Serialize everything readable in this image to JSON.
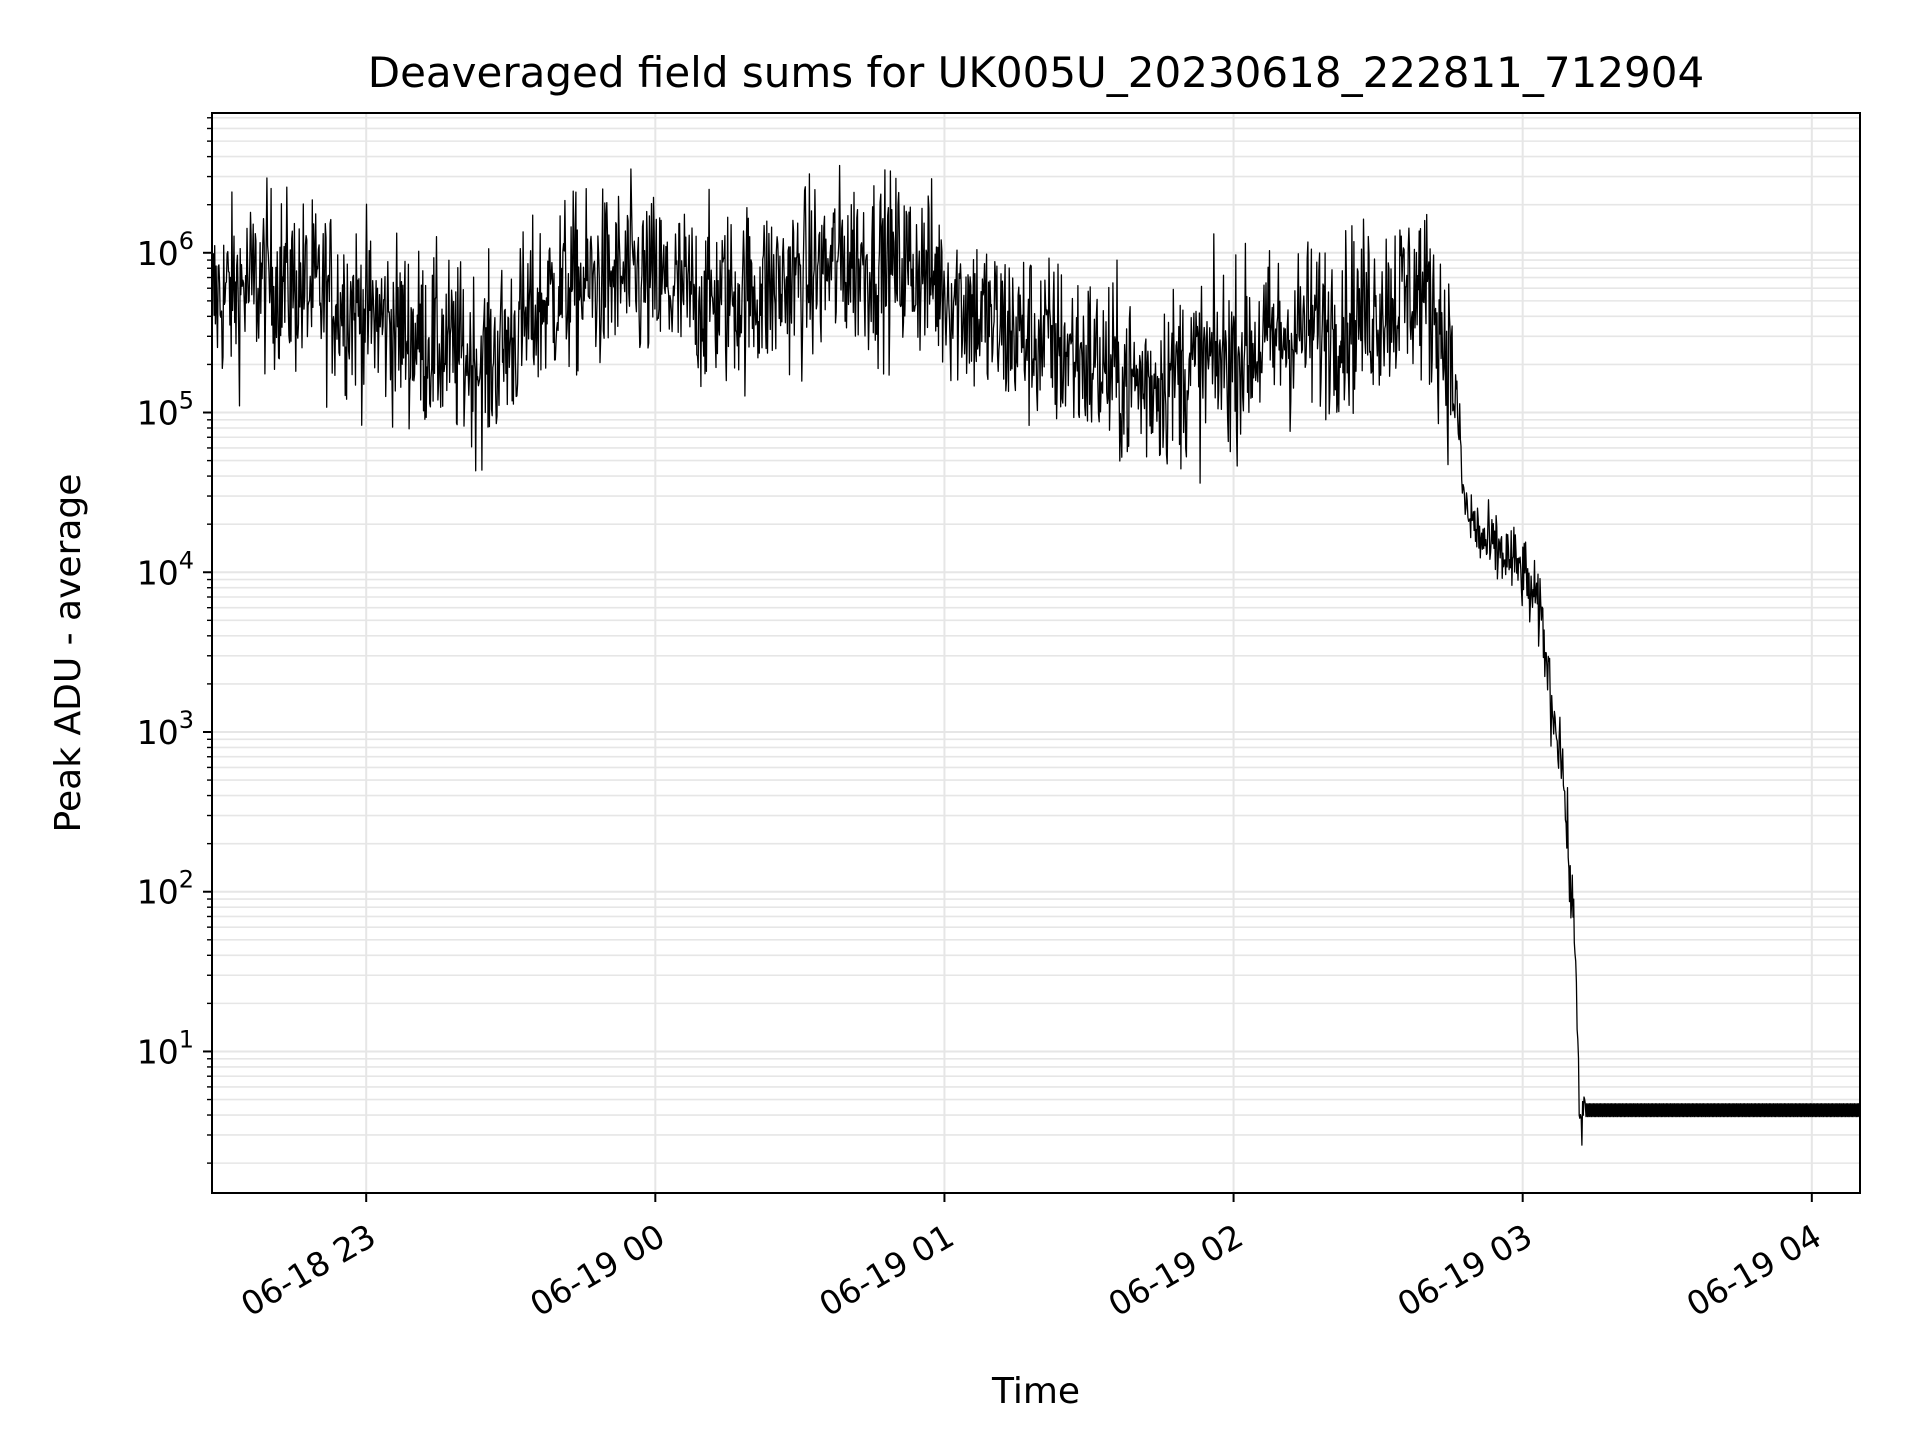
{
  "chart_data": {
    "type": "line",
    "title": "Deaveraged field sums for UK005U_20230618_222811_712904",
    "xlabel": "Time",
    "ylabel": "Peak ADU - average",
    "yscale": "log",
    "ylim": [
      1.3,
      7500000
    ],
    "xlim": [
      "2023-06-18 22:28",
      "2023-06-19 04:10"
    ],
    "grid": true,
    "x_ticks": [
      "06-18 23",
      "06-19 00",
      "06-19 01",
      "06-19 02",
      "06-19 03",
      "06-19 04"
    ],
    "y_ticks": [
      {
        "base": "10",
        "exp": "1"
      },
      {
        "base": "10",
        "exp": "2"
      },
      {
        "base": "10",
        "exp": "3"
      },
      {
        "base": "10",
        "exp": "4"
      },
      {
        "base": "10",
        "exp": "5"
      },
      {
        "base": "10",
        "exp": "6"
      }
    ],
    "series": [
      {
        "color": "#000000",
        "x": [
          "2023-06-18 22:28",
          "2023-06-18 22:40",
          "2023-06-18 22:55",
          "2023-06-18 23:10",
          "2023-06-18 23:25",
          "2023-06-18 23:40",
          "2023-06-18 23:55",
          "2023-06-19 00:10",
          "2023-06-19 00:25",
          "2023-06-19 00:40",
          "2023-06-19 00:55",
          "2023-06-19 01:10",
          "2023-06-19 01:25",
          "2023-06-19 01:40",
          "2023-06-19 01:55",
          "2023-06-19 02:10",
          "2023-06-19 02:25",
          "2023-06-19 02:38",
          "2023-06-19 02:42",
          "2023-06-19 02:46",
          "2023-06-19 02:48",
          "2023-06-19 02:52",
          "2023-06-19 02:56",
          "2023-06-19 03:00",
          "2023-06-19 03:04",
          "2023-06-19 03:06",
          "2023-06-19 03:08",
          "2023-06-19 03:10",
          "2023-06-19 03:11",
          "2023-06-19 03:12",
          "2023-06-19 03:13",
          "2023-06-19 03:14",
          "2023-06-19 03:30",
          "2023-06-19 03:50",
          "2023-06-19 04:10"
        ],
        "y": [
          500000,
          700000,
          500000,
          300000,
          200000,
          600000,
          700000,
          500000,
          600000,
          900000,
          800000,
          350000,
          250000,
          150000,
          200000,
          300000,
          400000,
          600000,
          450000,
          150000,
          25000,
          15000,
          13000,
          10000,
          5000,
          1500,
          800,
          100,
          40,
          3,
          4,
          4,
          4,
          4,
          4
        ]
      }
    ]
  }
}
